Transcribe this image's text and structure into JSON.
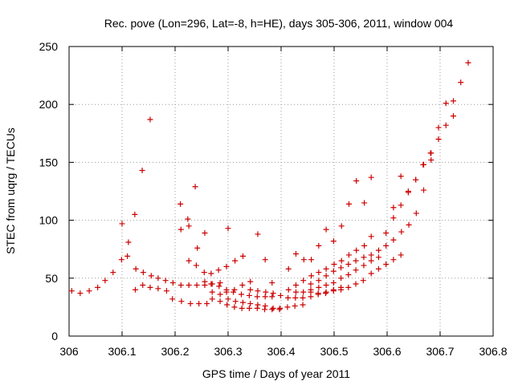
{
  "chart_data": {
    "type": "scatter",
    "title": "Rec. pove (Lon=296, Lat=-8, h=HE), days 305-306, 2011, window 004",
    "xlabel": "GPS time / Days of year 2011",
    "ylabel": "STEC from uqrg / TECUs",
    "xlim": [
      306,
      306.8
    ],
    "ylim": [
      0,
      250
    ],
    "x_ticks": [
      "306",
      "306.1",
      "306.2",
      "306.3",
      "306.4",
      "306.5",
      "306.6",
      "306.7",
      "306.8"
    ],
    "y_ticks": [
      "0",
      "50",
      "100",
      "150",
      "200",
      "250"
    ],
    "grid": true,
    "marker": "+",
    "color": "#cc0000",
    "points": [
      [
        306.005,
        39
      ],
      [
        306.021,
        37
      ],
      [
        306.038,
        39
      ],
      [
        306.054,
        42
      ],
      [
        306.068,
        48
      ],
      [
        306.083,
        55
      ],
      [
        306.099,
        66
      ],
      [
        306.11,
        69
      ],
      [
        306.125,
        40
      ],
      [
        306.139,
        44
      ],
      [
        306.153,
        42
      ],
      [
        306.168,
        41
      ],
      [
        306.184,
        39
      ],
      [
        306.195,
        32
      ],
      [
        306.212,
        30
      ],
      [
        306.229,
        28
      ],
      [
        306.245,
        28
      ],
      [
        306.26,
        28
      ],
      [
        306.1,
        97
      ],
      [
        306.112,
        81
      ],
      [
        306.124,
        105
      ],
      [
        306.138,
        143
      ],
      [
        306.153,
        187
      ],
      [
        306.126,
        58
      ],
      [
        306.14,
        55
      ],
      [
        306.155,
        52
      ],
      [
        306.168,
        50
      ],
      [
        306.182,
        48
      ],
      [
        306.196,
        46
      ],
      [
        306.211,
        44
      ],
      [
        306.226,
        44
      ],
      [
        306.241,
        44
      ],
      [
        306.256,
        44
      ],
      [
        306.27,
        45
      ],
      [
        306.285,
        46
      ],
      [
        306.21,
        114
      ],
      [
        306.224,
        101
      ],
      [
        306.238,
        129
      ],
      [
        306.226,
        95
      ],
      [
        306.242,
        76
      ],
      [
        306.256,
        89
      ],
      [
        306.211,
        92
      ],
      [
        306.226,
        65
      ],
      [
        306.24,
        61
      ],
      [
        306.255,
        55
      ],
      [
        306.268,
        54
      ],
      [
        306.282,
        57
      ],
      [
        306.297,
        60
      ],
      [
        306.256,
        47
      ],
      [
        306.268,
        45
      ],
      [
        306.283,
        43
      ],
      [
        306.297,
        40
      ],
      [
        306.31,
        38
      ],
      [
        306.325,
        36
      ],
      [
        306.34,
        35
      ],
      [
        306.355,
        34
      ],
      [
        306.37,
        34
      ],
      [
        306.383,
        34
      ],
      [
        306.27,
        38
      ],
      [
        306.285,
        36
      ],
      [
        306.3,
        32
      ],
      [
        306.314,
        30
      ],
      [
        306.328,
        29
      ],
      [
        306.342,
        28
      ],
      [
        306.356,
        27
      ],
      [
        306.37,
        26
      ],
      [
        306.385,
        24
      ],
      [
        306.397,
        23
      ],
      [
        306.412,
        25
      ],
      [
        306.426,
        26
      ],
      [
        306.441,
        27
      ],
      [
        306.27,
        32
      ],
      [
        306.285,
        30
      ],
      [
        306.298,
        27
      ],
      [
        306.312,
        25
      ],
      [
        306.326,
        24
      ],
      [
        306.34,
        24
      ],
      [
        306.355,
        24
      ],
      [
        306.369,
        23
      ],
      [
        306.383,
        23
      ],
      [
        306.398,
        24
      ],
      [
        306.3,
        93
      ],
      [
        306.313,
        65
      ],
      [
        306.328,
        69
      ],
      [
        306.342,
        47
      ],
      [
        306.356,
        88
      ],
      [
        306.37,
        66
      ],
      [
        306.383,
        46
      ],
      [
        306.297,
        38
      ],
      [
        306.312,
        40
      ],
      [
        306.327,
        44
      ],
      [
        306.342,
        40
      ],
      [
        306.356,
        39
      ],
      [
        306.371,
        38
      ],
      [
        306.385,
        37
      ],
      [
        306.399,
        35
      ],
      [
        306.413,
        33
      ],
      [
        306.427,
        33
      ],
      [
        306.441,
        33
      ],
      [
        306.456,
        34
      ],
      [
        306.47,
        36
      ],
      [
        306.485,
        38
      ],
      [
        306.499,
        40
      ],
      [
        306.513,
        42
      ],
      [
        306.414,
        40
      ],
      [
        306.428,
        44
      ],
      [
        306.442,
        48
      ],
      [
        306.457,
        52
      ],
      [
        306.471,
        55
      ],
      [
        306.485,
        58
      ],
      [
        306.5,
        62
      ],
      [
        306.514,
        65
      ],
      [
        306.528,
        70
      ],
      [
        306.542,
        74
      ],
      [
        306.557,
        78
      ],
      [
        306.57,
        86
      ],
      [
        306.414,
        58
      ],
      [
        306.428,
        71
      ],
      [
        306.443,
        66
      ],
      [
        306.457,
        66
      ],
      [
        306.471,
        78
      ],
      [
        306.485,
        92
      ],
      [
        306.499,
        82
      ],
      [
        306.514,
        95
      ],
      [
        306.528,
        114
      ],
      [
        306.542,
        134
      ],
      [
        306.557,
        115
      ],
      [
        306.57,
        137
      ],
      [
        306.428,
        38
      ],
      [
        306.442,
        38
      ],
      [
        306.456,
        38
      ],
      [
        306.47,
        37
      ],
      [
        306.484,
        37
      ],
      [
        306.499,
        39
      ],
      [
        306.513,
        40
      ],
      [
        306.527,
        42
      ],
      [
        306.541,
        45
      ],
      [
        306.555,
        48
      ],
      [
        306.57,
        54
      ],
      [
        306.584,
        58
      ],
      [
        306.598,
        62
      ],
      [
        306.612,
        66
      ],
      [
        306.626,
        70
      ],
      [
        306.456,
        45
      ],
      [
        306.471,
        48
      ],
      [
        306.485,
        52
      ],
      [
        306.499,
        56
      ],
      [
        306.513,
        59
      ],
      [
        306.527,
        62
      ],
      [
        306.541,
        65
      ],
      [
        306.556,
        68
      ],
      [
        306.57,
        70
      ],
      [
        306.584,
        74
      ],
      [
        306.598,
        78
      ],
      [
        306.612,
        83
      ],
      [
        306.627,
        90
      ],
      [
        306.641,
        96
      ],
      [
        306.655,
        106
      ],
      [
        306.669,
        126
      ],
      [
        306.682,
        158
      ],
      [
        306.598,
        89
      ],
      [
        306.612,
        102
      ],
      [
        306.626,
        113
      ],
      [
        306.64,
        125
      ],
      [
        306.654,
        135
      ],
      [
        306.668,
        148
      ],
      [
        306.683,
        152
      ],
      [
        306.697,
        180
      ],
      [
        306.711,
        201
      ],
      [
        306.725,
        203
      ],
      [
        306.739,
        219
      ],
      [
        306.753,
        236
      ],
      [
        306.612,
        111
      ],
      [
        306.626,
        138
      ],
      [
        306.64,
        124
      ],
      [
        306.654,
        135
      ],
      [
        306.669,
        148
      ],
      [
        306.683,
        158
      ],
      [
        306.697,
        170
      ],
      [
        306.711,
        182
      ],
      [
        306.725,
        190
      ],
      [
        306.456,
        40
      ],
      [
        306.471,
        42
      ],
      [
        306.485,
        44
      ],
      [
        306.499,
        46
      ],
      [
        306.513,
        50
      ],
      [
        306.527,
        53
      ],
      [
        306.541,
        57
      ],
      [
        306.556,
        61
      ],
      [
        306.57,
        65
      ],
      [
        306.584,
        68
      ]
    ]
  }
}
